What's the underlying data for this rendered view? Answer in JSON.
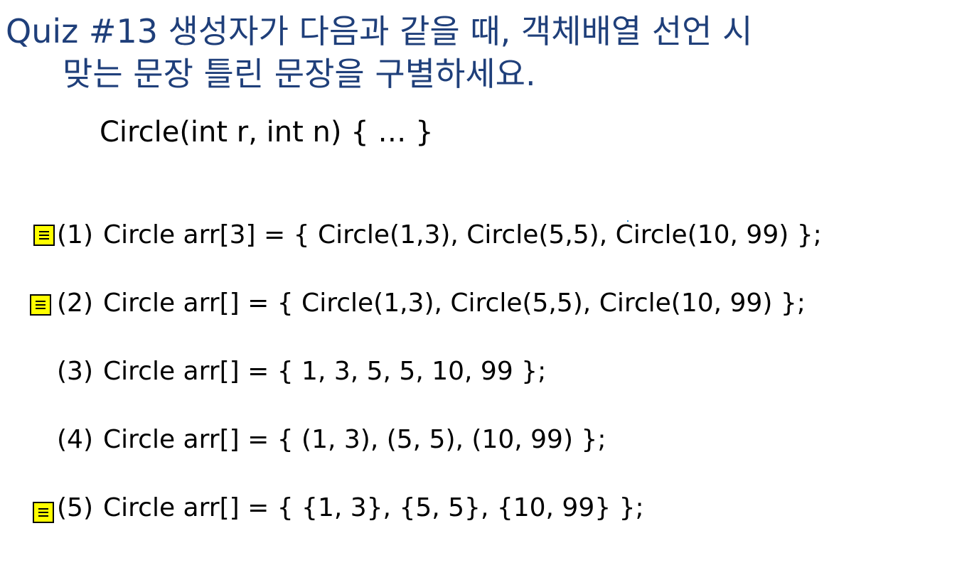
{
  "quiz": {
    "title_line1": "Quiz #13   생성자가 다음과 같을 때, 객체배열 선언 시",
    "title_line2": "맞는 문장 틀린 문장을 구별하세요.",
    "constructor": "Circle(int r, int n) { … }"
  },
  "items": [
    {
      "num": "(1)",
      "code": "Circle arr[3] = { Circle(1,3), Circle(5,5), Circle(10, 99) };",
      "has_note": true
    },
    {
      "num": "(2)",
      "code": "Circle arr[] = { Circle(1,3), Circle(5,5), Circle(10, 99) };",
      "has_note": true
    },
    {
      "num": "(3)",
      "code": "Circle arr[] = { 1, 3, 5, 5, 10, 99 };",
      "has_note": false
    },
    {
      "num": "(4)",
      "code": "Circle arr[] = { (1, 3), (5, 5), (10, 99) };",
      "has_note": false
    },
    {
      "num": "(5)",
      "code": "Circle arr[] = { {1, 3}, {5, 5}, {10, 99} };",
      "has_note": true
    }
  ],
  "colors": {
    "title": "#1f3f7a",
    "note": "#ffff00"
  },
  "icons": {
    "note": "sticky-note-icon"
  }
}
